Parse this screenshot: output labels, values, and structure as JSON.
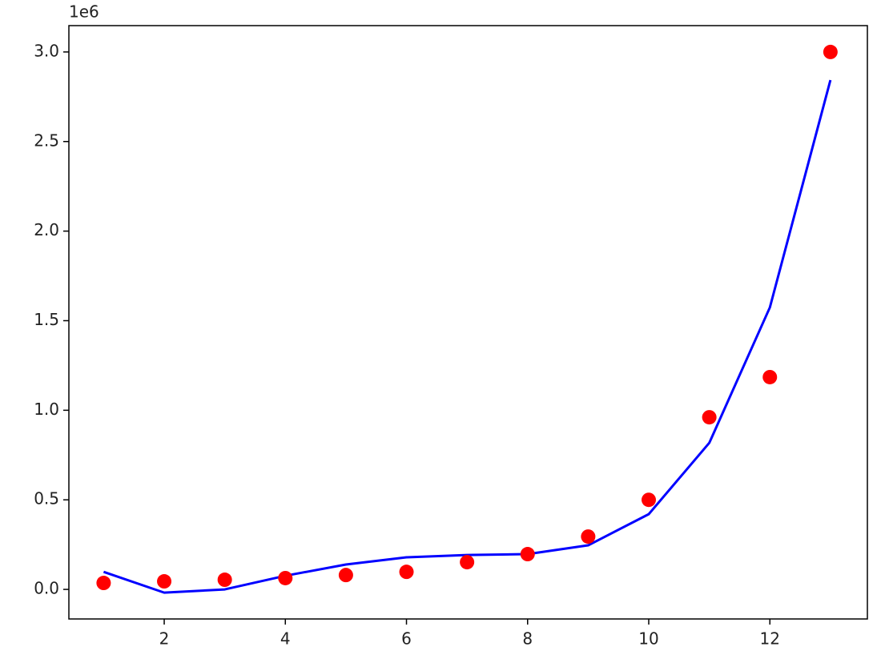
{
  "chart_data": {
    "type": "scatter",
    "y_offset_label": "1e6",
    "x": [
      1,
      2,
      3,
      4,
      5,
      6,
      7,
      8,
      9,
      10,
      11,
      12,
      13
    ],
    "series": [
      {
        "type": "scatter",
        "color": "#ff0000",
        "values": [
          0.036,
          0.045,
          0.054,
          0.063,
          0.08,
          0.098,
          0.152,
          0.197,
          0.295,
          0.5,
          0.961,
          1.185,
          3.0
        ]
      },
      {
        "type": "line",
        "color": "#0000ff",
        "values": [
          0.098,
          -0.018,
          0,
          0.076,
          0.139,
          0.179,
          0.192,
          0.197,
          0.246,
          0.42,
          0.818,
          1.574,
          2.843
        ]
      }
    ],
    "xlim": [
      0.426,
      13.61
    ],
    "ylim": [
      -0.165,
      3.147
    ],
    "xticks": [
      2,
      4,
      6,
      8,
      10,
      12
    ],
    "yticks": [
      {
        "value": 0,
        "label": "0.0"
      },
      0.5,
      {
        "value": 1,
        "label": "1.0"
      },
      1.5,
      {
        "value": 2,
        "label": "2.0"
      },
      2.5,
      {
        "value": 3,
        "label": "3.0"
      }
    ],
    "grid": false
  }
}
